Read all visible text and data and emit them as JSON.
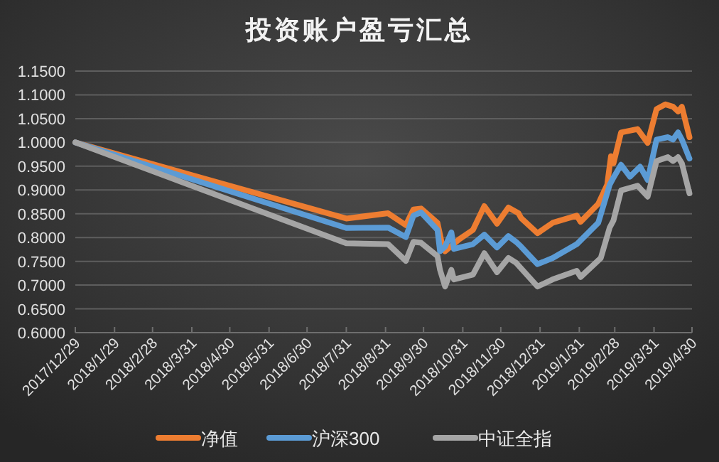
{
  "chart_data": {
    "type": "line",
    "title": "投资账户盈亏汇总",
    "xlim": [
      "2017-12-29",
      "2019-04-30"
    ],
    "xticks": [
      {
        "value": "2017-12-29",
        "label": "2017/12/29"
      },
      {
        "value": "2018-01-29",
        "label": "2018/1/29"
      },
      {
        "value": "2018-02-28",
        "label": "2018/2/28"
      },
      {
        "value": "2018-03-31",
        "label": "2018/3/31"
      },
      {
        "value": "2018-04-30",
        "label": "2018/4/30"
      },
      {
        "value": "2018-05-31",
        "label": "2018/5/31"
      },
      {
        "value": "2018-06-30",
        "label": "2018/6/30"
      },
      {
        "value": "2018-07-31",
        "label": "2018/7/31"
      },
      {
        "value": "2018-08-31",
        "label": "2018/8/31"
      },
      {
        "value": "2018-09-30",
        "label": "2018/9/30"
      },
      {
        "value": "2018-10-31",
        "label": "2018/10/31"
      },
      {
        "value": "2018-11-30",
        "label": "2018/11/30"
      },
      {
        "value": "2018-12-31",
        "label": "2018/12/31"
      },
      {
        "value": "2019-01-31",
        "label": "2019/1/31"
      },
      {
        "value": "2019-02-28",
        "label": "2019/2/28"
      },
      {
        "value": "2019-03-31",
        "label": "2019/3/31"
      },
      {
        "value": "2019-04-30",
        "label": "2019/4/30"
      }
    ],
    "ylim": [
      0.6,
      1.15
    ],
    "yticks": [
      {
        "value": 0.6,
        "label": "0.6000"
      },
      {
        "value": 0.65,
        "label": "0.6500"
      },
      {
        "value": 0.7,
        "label": "0.7000"
      },
      {
        "value": 0.75,
        "label": "0.7500"
      },
      {
        "value": 0.8,
        "label": "0.8000"
      },
      {
        "value": 0.85,
        "label": "0.8500"
      },
      {
        "value": 0.9,
        "label": "0.9000"
      },
      {
        "value": 0.95,
        "label": "0.9500"
      },
      {
        "value": 1.0,
        "label": "1.0000"
      },
      {
        "value": 1.05,
        "label": "1.0500"
      },
      {
        "value": 1.1,
        "label": "1.1000"
      },
      {
        "value": 1.15,
        "label": "1.1500"
      }
    ],
    "grid": "y",
    "legend": "bottom",
    "series": [
      {
        "name": "净值",
        "color": "#ed7d31",
        "x": [
          "2017-12-29",
          "2018-07-31",
          "2018-09-02",
          "2018-09-16",
          "2018-09-22",
          "2018-09-28",
          "2018-10-11",
          "2018-10-15",
          "2018-10-17",
          "2018-10-28",
          "2018-11-08",
          "2018-11-17",
          "2018-11-27",
          "2018-12-06",
          "2018-12-14",
          "2018-12-16",
          "2018-12-29",
          "2019-01-10",
          "2019-01-29",
          "2019-02-01",
          "2019-02-15",
          "2019-02-22",
          "2019-02-25",
          "2019-02-27",
          "2019-03-05",
          "2019-03-18",
          "2019-03-26",
          "2019-04-02",
          "2019-04-09",
          "2019-04-15",
          "2019-04-19",
          "2019-04-22",
          "2019-04-28"
        ],
        "values": [
          1.0,
          0.84,
          0.851,
          0.826,
          0.859,
          0.861,
          0.831,
          0.781,
          0.771,
          0.796,
          0.816,
          0.866,
          0.829,
          0.863,
          0.851,
          0.841,
          0.809,
          0.831,
          0.846,
          0.833,
          0.871,
          0.911,
          0.971,
          0.956,
          1.021,
          1.028,
          0.999,
          1.07,
          1.08,
          1.075,
          1.065,
          1.075,
          1.011
        ]
      },
      {
        "name": "沪深300",
        "color": "#5b9bd5",
        "x": [
          "2017-12-29",
          "2018-07-31",
          "2018-09-02",
          "2018-09-16",
          "2018-09-22",
          "2018-09-28",
          "2018-10-11",
          "2018-10-13",
          "2018-10-17",
          "2018-10-22",
          "2018-10-24",
          "2018-11-08",
          "2018-11-17",
          "2018-11-27",
          "2018-12-06",
          "2018-12-12",
          "2018-12-16",
          "2018-12-29",
          "2019-01-10",
          "2019-01-29",
          "2019-02-15",
          "2019-02-24",
          "2019-02-27",
          "2019-03-05",
          "2019-03-12",
          "2019-03-20",
          "2019-03-26",
          "2019-04-02",
          "2019-04-11",
          "2019-04-15",
          "2019-04-19",
          "2019-04-22",
          "2019-04-28"
        ],
        "values": [
          1.0,
          0.82,
          0.821,
          0.801,
          0.846,
          0.853,
          0.816,
          0.771,
          0.781,
          0.811,
          0.776,
          0.786,
          0.806,
          0.779,
          0.803,
          0.791,
          0.781,
          0.744,
          0.757,
          0.786,
          0.831,
          0.911,
          0.926,
          0.953,
          0.928,
          0.949,
          0.921,
          1.006,
          1.011,
          1.006,
          1.021,
          1.006,
          0.966
        ]
      },
      {
        "name": "中证全指",
        "color": "#a5a5a5",
        "x": [
          "2017-12-29",
          "2018-07-31",
          "2018-09-02",
          "2018-09-16",
          "2018-09-22",
          "2018-09-28",
          "2018-10-11",
          "2018-10-13",
          "2018-10-17",
          "2018-10-22",
          "2018-10-24",
          "2018-11-08",
          "2018-11-17",
          "2018-11-27",
          "2018-12-06",
          "2018-12-12",
          "2018-12-29",
          "2019-01-10",
          "2019-01-29",
          "2019-02-01",
          "2019-02-17",
          "2019-02-24",
          "2019-02-27",
          "2019-03-05",
          "2019-03-18",
          "2019-03-26",
          "2019-04-02",
          "2019-04-11",
          "2019-04-15",
          "2019-04-19",
          "2019-04-22",
          "2019-04-28"
        ],
        "values": [
          1.0,
          0.788,
          0.786,
          0.751,
          0.791,
          0.789,
          0.761,
          0.732,
          0.697,
          0.732,
          0.712,
          0.722,
          0.767,
          0.727,
          0.757,
          0.747,
          0.697,
          0.712,
          0.73,
          0.717,
          0.757,
          0.821,
          0.836,
          0.899,
          0.909,
          0.886,
          0.961,
          0.969,
          0.961,
          0.969,
          0.956,
          0.893
        ]
      }
    ]
  }
}
